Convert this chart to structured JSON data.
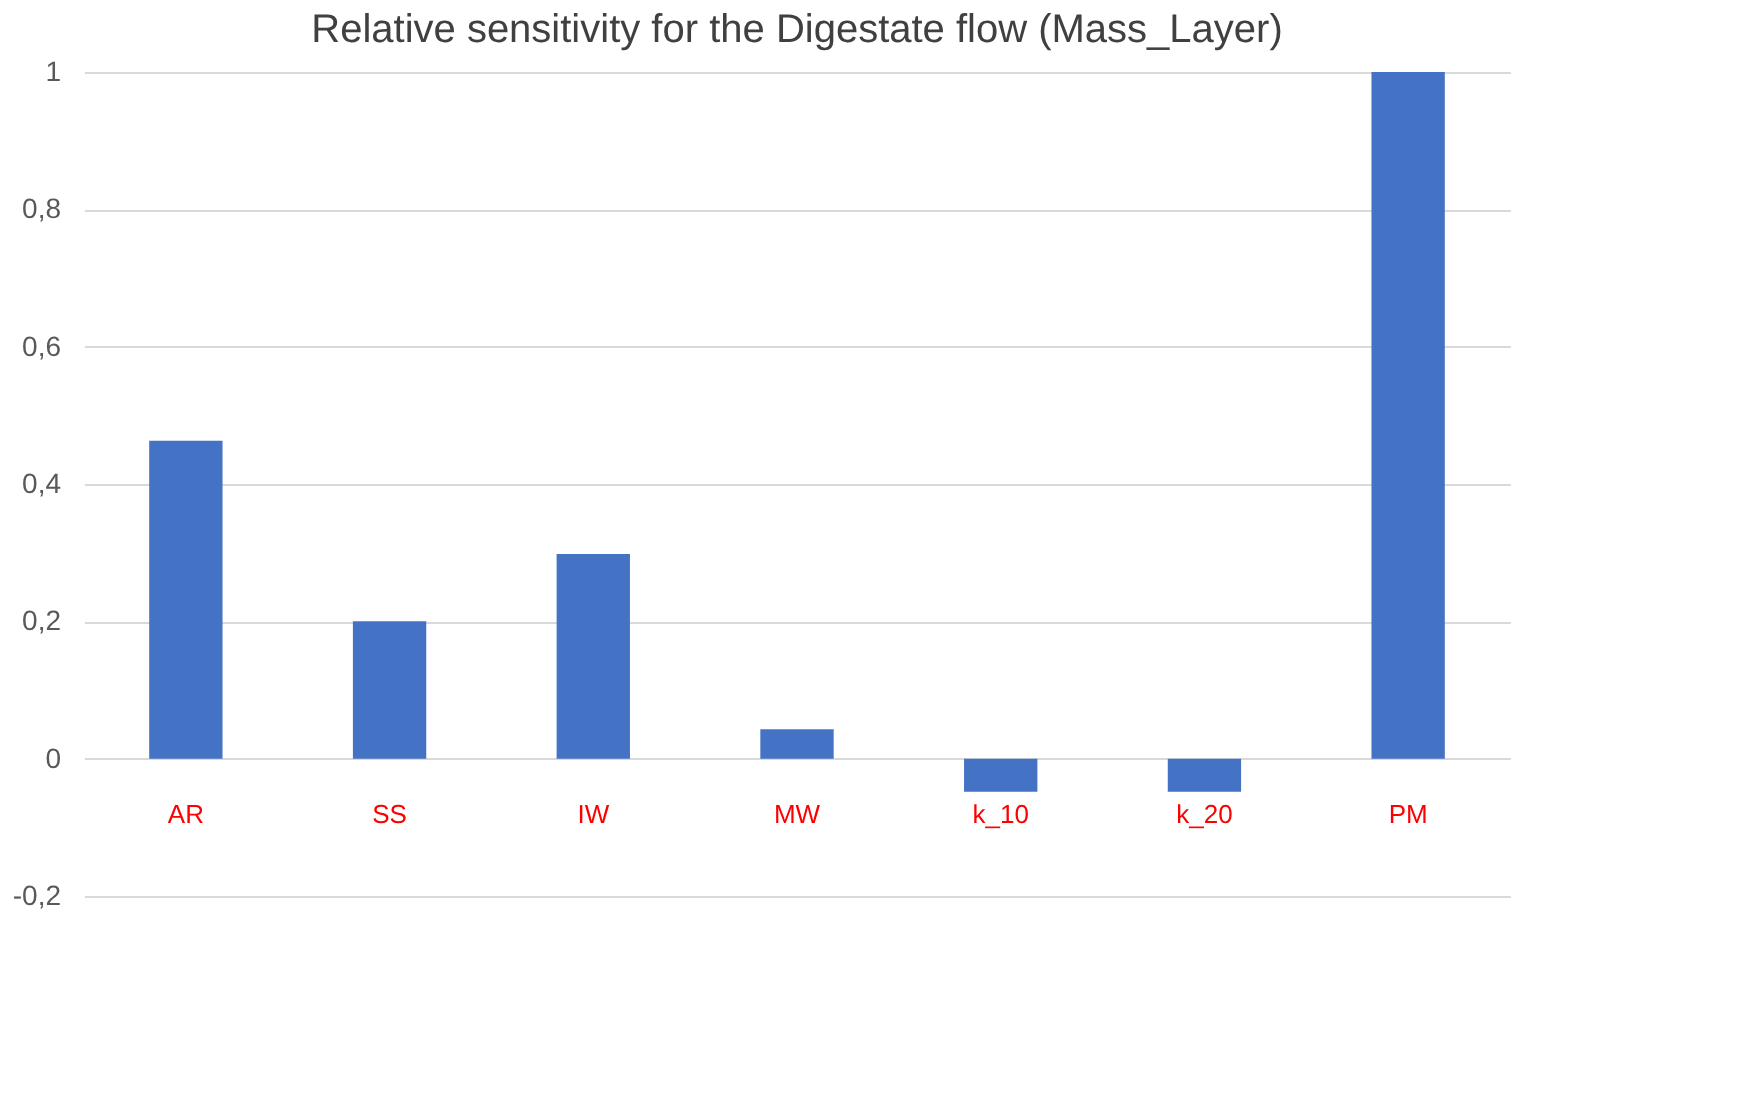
{
  "chart_data": {
    "type": "bar",
    "title": "Relative sensitivity for the Digestate flow (Mass_Layer)",
    "categories": [
      "AR",
      "SS",
      "IW",
      "MW",
      "k_10",
      "k_20",
      "PM"
    ],
    "values": [
      0.463,
      0.2,
      0.298,
      0.043,
      -0.048,
      -0.048,
      1.0
    ],
    "color": "#4472c4",
    "ylim": [
      -0.2,
      1
    ],
    "yticks": [
      {
        "value": -0.2,
        "label": "-0,2"
      },
      {
        "value": 0,
        "label": "0"
      },
      {
        "value": 0.2,
        "label": "0,2"
      },
      {
        "value": 0.4,
        "label": "0,4"
      },
      {
        "value": 0.6,
        "label": "0,6"
      },
      {
        "value": 0.8,
        "label": "0,8"
      },
      {
        "value": 1,
        "label": "1"
      }
    ],
    "grid": "y",
    "tick_labels": "y"
  }
}
